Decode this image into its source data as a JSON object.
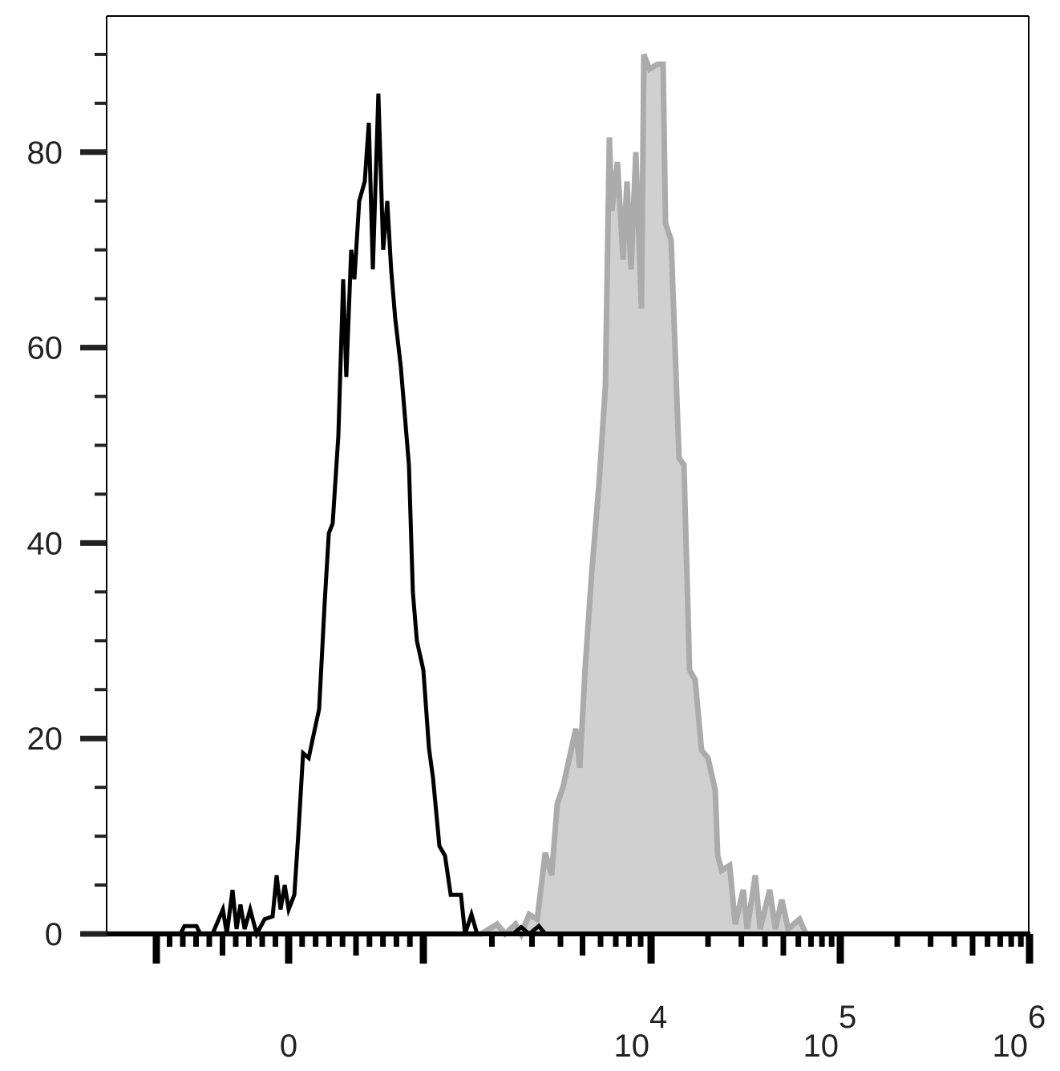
{
  "chart_data": {
    "type": "area",
    "title": "",
    "xlabel": "",
    "ylabel": "",
    "x_scale": "biexponential",
    "xlim": [
      -1376,
      1000000
    ],
    "ylim": [
      0,
      93.9
    ],
    "grid": false,
    "legend": "none",
    "yticks": [
      {
        "value": 0,
        "label": "0"
      },
      {
        "value": 20,
        "label": "20"
      },
      {
        "value": 40,
        "label": "40"
      },
      {
        "value": 60,
        "label": "60"
      },
      {
        "value": 80,
        "label": "80"
      }
    ],
    "xticks": [
      {
        "value": 0,
        "base": "0",
        "exp": ""
      },
      {
        "value": 10000,
        "base": "10",
        "exp": "4"
      },
      {
        "value": 100000,
        "base": "10",
        "exp": "5"
      },
      {
        "value": 1000000,
        "base": "10",
        "exp": "6"
      }
    ],
    "series": [
      {
        "style": "filled",
        "fill_color": "#d0d0d0",
        "line_color": "#ababab",
        "x": [
          -1376,
          1793,
          2109,
          2286,
          2541,
          2690,
          2916,
          3162,
          3430,
          3659,
          3873,
          4101,
          4377,
          4670,
          4862,
          5145,
          5488,
          5902,
          6298,
          6561,
          6719,
          7114,
          7534,
          7839,
          8166,
          8570,
          9076,
          9297,
          9843,
          10813,
          11579,
          11920,
          12762,
          14060,
          14920,
          15970,
          17100,
          18490,
          19990,
          21830,
          22490,
          23600,
          26020,
          27860,
          30710,
          32230,
          35540,
          37680,
          42360,
          45380,
          49050,
          53060,
          60850,
          65790,
          1000000
        ],
        "y": [
          0,
          0,
          1,
          0,
          1,
          0,
          2,
          1.5,
          8.3,
          6,
          13.3,
          15,
          18,
          21,
          17,
          27.5,
          37,
          46,
          56,
          81.5,
          74,
          79,
          69,
          77,
          68,
          80,
          64,
          90,
          88.5,
          89,
          89,
          72.7,
          71,
          48.7,
          48,
          27,
          26,
          18.8,
          18,
          14.7,
          8,
          6.5,
          7,
          1,
          4.5,
          0.5,
          6,
          0.5,
          4.5,
          0.5,
          3.5,
          0.5,
          1.5,
          0,
          0
        ]
      },
      {
        "style": "line",
        "line_color": "#000000",
        "x": [
          -1376,
          -818,
          -788,
          -697,
          -667,
          -576,
          -497,
          -467,
          -424,
          -394,
          -364,
          -333,
          -291,
          -242,
          -182,
          -121,
          -91,
          -61,
          -30,
          0,
          42,
          71,
          107,
          149,
          179,
          226,
          268,
          298,
          327,
          369,
          405,
          428,
          464,
          488,
          524,
          565,
          595,
          625,
          666,
          702,
          732,
          761,
          791,
          833,
          893,
          922,
          952,
          1000,
          1058,
          1102,
          1176,
          1245,
          1318,
          1463,
          1524,
          1626,
          1722,
          2476,
          2690,
          2916,
          3215,
          3430,
          1000000
        ],
        "y": [
          0,
          0,
          0.8,
          0.8,
          0,
          0,
          2.5,
          0,
          4.5,
          0.5,
          3,
          0.5,
          2.5,
          0,
          1.5,
          1.8,
          6,
          2.5,
          5,
          2.5,
          4,
          10,
          18.5,
          18,
          20,
          23,
          34,
          41,
          42,
          51,
          67,
          57,
          70,
          67,
          75,
          77,
          83,
          68,
          86,
          70,
          75,
          68,
          63,
          58,
          48,
          35,
          30,
          27,
          19,
          16,
          9,
          8,
          4,
          4,
          0,
          2,
          0,
          0,
          0.7,
          0,
          0.8,
          0,
          0
        ]
      }
    ]
  }
}
